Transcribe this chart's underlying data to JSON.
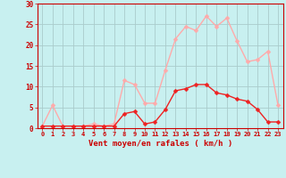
{
  "xlabel": "Vent moyen/en rafales ( km/h )",
  "background_color": "#c8f0f0",
  "grid_color": "#aacccc",
  "x": [
    0,
    1,
    2,
    3,
    4,
    5,
    6,
    7,
    8,
    9,
    10,
    11,
    12,
    13,
    14,
    15,
    16,
    17,
    18,
    19,
    20,
    21,
    22,
    23
  ],
  "y_mean": [
    0.5,
    0.5,
    0.5,
    0.5,
    0.5,
    0.5,
    0.5,
    0.5,
    3.5,
    4.0,
    1.0,
    1.5,
    4.5,
    9.0,
    9.5,
    10.5,
    10.5,
    8.5,
    8.0,
    7.0,
    6.5,
    4.5,
    1.5,
    1.5
  ],
  "y_gust": [
    0.5,
    5.5,
    0.5,
    0.5,
    0.5,
    1.0,
    0.5,
    1.0,
    11.5,
    10.5,
    6.0,
    6.0,
    14.0,
    21.5,
    24.5,
    23.5,
    27.0,
    24.5,
    26.5,
    21.0,
    16.0,
    16.5,
    18.5,
    5.5
  ],
  "mean_color": "#ee2222",
  "gust_color": "#ffaaaa",
  "ylim": [
    0,
    30
  ],
  "yticks": [
    0,
    5,
    10,
    15,
    20,
    25,
    30
  ],
  "xlim": [
    -0.5,
    23.5
  ]
}
